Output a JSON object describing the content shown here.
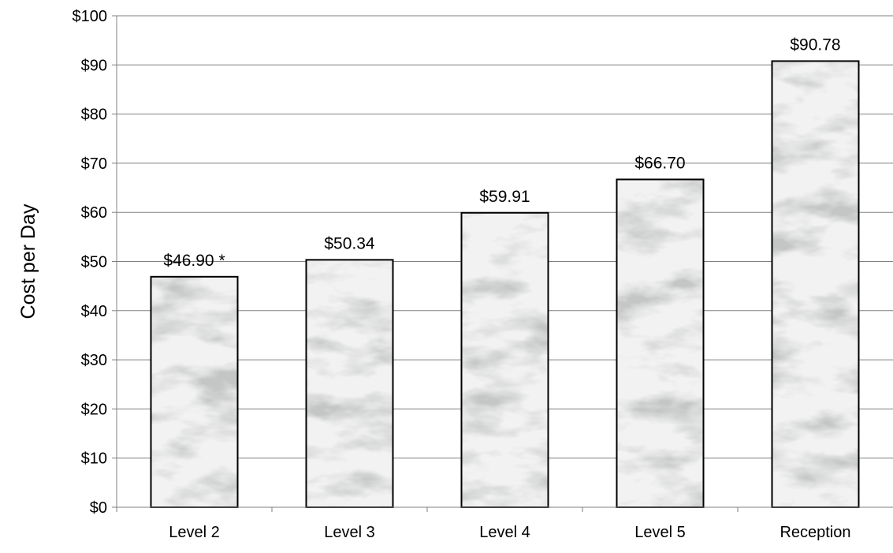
{
  "chart_data": {
    "type": "bar",
    "title": "",
    "xlabel": "",
    "ylabel": "Cost per Day",
    "ylim": [
      0,
      100
    ],
    "yticks": [
      0,
      10,
      20,
      30,
      40,
      50,
      60,
      70,
      80,
      90,
      100
    ],
    "ytick_labels": [
      "$0",
      "$10",
      "$20",
      "$30",
      "$40",
      "$50",
      "$60",
      "$70",
      "$80",
      "$90",
      "$100"
    ],
    "categories": [
      "Level 2",
      "Level 3",
      "Level 4",
      "Level 5",
      "Reception"
    ],
    "values": [
      46.9,
      50.34,
      59.91,
      66.7,
      90.78
    ],
    "data_labels": [
      "$46.90 *",
      "$50.34",
      "$59.91",
      "$66.70",
      "$90.78"
    ],
    "grid": "horizontal",
    "legend": "none",
    "bar_fill": "marble texture (white/grey)",
    "colors": {
      "bar_border": "#000000",
      "gridline": "#808080",
      "axis": "#808080",
      "marble_base": "#f1f1f1",
      "marble_vein": "#8c8c8c"
    }
  }
}
